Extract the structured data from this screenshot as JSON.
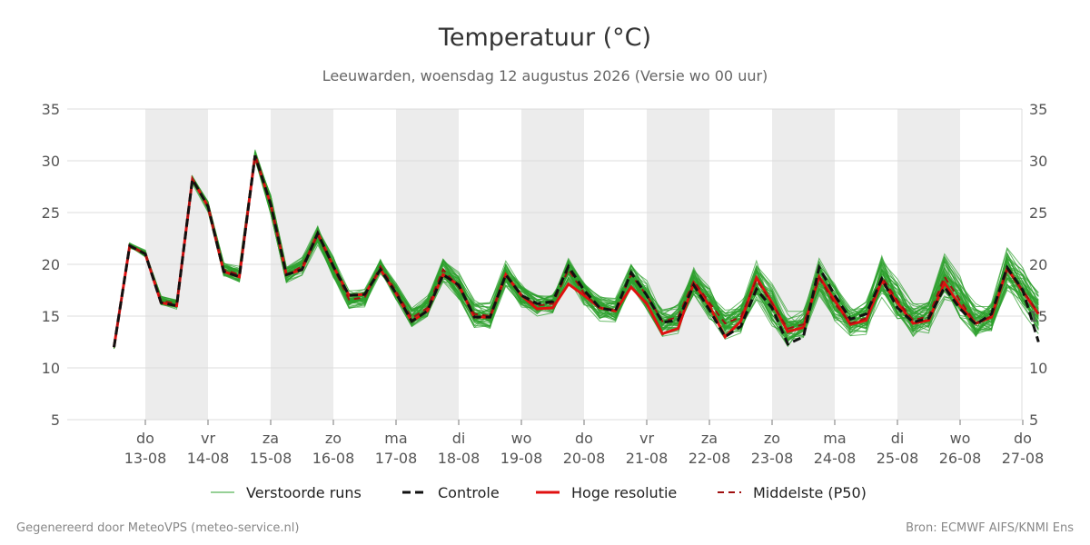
{
  "title": "Temperatuur (°C)",
  "subtitle": "Leeuwarden, woensdag 12 augustus 2026 (Versie wo 00 uur)",
  "footer_left": "Gegenereerd door MeteoVPS (meteo-service.nl)",
  "footer_right": "Bron: ECMWF AIFS/KNMI Ens",
  "colors": {
    "ensemble": "#2ca02c",
    "control": "#111111",
    "hires": "#e01010",
    "median": "#a01010",
    "weekend_band": "#ececec",
    "grid": "#dddddd"
  },
  "chart_data": {
    "type": "line",
    "y_range": [
      5,
      35
    ],
    "y_ticks": [
      5,
      10,
      15,
      20,
      25,
      30,
      35
    ],
    "grid": true,
    "legend_position": "bottom",
    "x_start": "12-08 12:00",
    "x_step_hours": 6,
    "x_ticks": [
      {
        "day": "do",
        "date": "13-08"
      },
      {
        "day": "vr",
        "date": "14-08"
      },
      {
        "day": "za",
        "date": "15-08"
      },
      {
        "day": "zo",
        "date": "16-08"
      },
      {
        "day": "ma",
        "date": "17-08"
      },
      {
        "day": "di",
        "date": "18-08"
      },
      {
        "day": "wo",
        "date": "19-08"
      },
      {
        "day": "do",
        "date": "20-08"
      },
      {
        "day": "vr",
        "date": "21-08"
      },
      {
        "day": "za",
        "date": "22-08"
      },
      {
        "day": "zo",
        "date": "23-08"
      },
      {
        "day": "ma",
        "date": "24-08"
      },
      {
        "day": "di",
        "date": "25-08"
      },
      {
        "day": "wo",
        "date": "26-08"
      },
      {
        "day": "do",
        "date": "27-08"
      }
    ],
    "shaded_days": [
      "13-08",
      "15-08",
      "17-08",
      "19-08",
      "21-08",
      "23-08",
      "25-08"
    ],
    "legend": [
      {
        "label": "Verstoorde runs",
        "key": "ensemble"
      },
      {
        "label": "Controle",
        "key": "control"
      },
      {
        "label": "Hoge resolutie",
        "key": "hires"
      },
      {
        "label": "Middelste (P50)",
        "key": "median"
      }
    ],
    "series": {
      "hires": [
        12.0,
        21.8,
        21.0,
        16.3,
        16.0,
        28.2,
        25.6,
        19.3,
        18.8,
        30.5,
        25.8,
        19.0,
        19.5,
        23.0,
        19.8,
        17.0,
        17.1,
        19.5,
        17.2,
        14.5,
        15.5,
        19.0,
        18.0,
        14.9,
        14.9,
        19.0,
        17.0,
        15.7,
        15.8,
        18.1,
        17.0,
        15.8,
        15.5,
        17.8,
        16.2,
        13.3,
        13.8,
        18.2,
        16.0,
        13.0,
        14.5,
        18.7,
        16.3,
        13.5,
        13.9,
        18.8,
        16.5,
        14.2,
        14.6,
        18.4,
        16.3,
        14.3,
        14.6,
        18.2,
        16.0,
        14.3,
        14.9,
        19.6,
        17.4,
        15.2
      ],
      "control": [
        12.0,
        21.8,
        21.0,
        16.3,
        16.0,
        28.2,
        25.6,
        19.3,
        18.8,
        30.5,
        25.8,
        19.0,
        19.5,
        23.0,
        19.8,
        17.0,
        17.1,
        19.5,
        17.2,
        14.5,
        15.5,
        19.0,
        18.0,
        14.9,
        14.9,
        19.0,
        17.0,
        16.2,
        16.4,
        19.8,
        17.5,
        15.8,
        15.5,
        19.2,
        17.0,
        14.4,
        14.6,
        18.0,
        15.6,
        13.0,
        14.0,
        17.6,
        15.8,
        12.3,
        13.0,
        19.7,
        17.0,
        14.7,
        15.2,
        18.6,
        15.8,
        14.4,
        14.8,
        17.8,
        15.7,
        14.2,
        15.2,
        19.7,
        17.5,
        12.5
      ],
      "median": [
        12.0,
        21.8,
        21.0,
        16.5,
        16.2,
        28.2,
        25.6,
        19.5,
        19.0,
        30.5,
        25.8,
        19.0,
        19.8,
        22.8,
        19.7,
        16.6,
        16.8,
        19.8,
        17.4,
        14.8,
        15.8,
        19.5,
        17.8,
        15.2,
        15.0,
        19.0,
        17.0,
        16.0,
        16.2,
        19.5,
        17.2,
        15.8,
        15.6,
        19.0,
        17.0,
        14.5,
        14.9,
        18.4,
        16.3,
        14.3,
        14.9,
        18.5,
        16.2,
        13.8,
        14.2,
        18.7,
        16.2,
        14.3,
        14.8,
        18.8,
        16.5,
        14.6,
        15.0,
        18.8,
        16.5,
        14.3,
        15.0,
        19.5,
        17.5,
        15.3
      ]
    },
    "ensemble_members": 50,
    "ensemble_spread": [
      0.3,
      0.4,
      0.5,
      0.7,
      0.7,
      0.4,
      0.8,
      1.0,
      1.0,
      0.6,
      1.6,
      0.8,
      1.1,
      1.3,
      1.4,
      1.2,
      1.3,
      1.0,
      1.4,
      1.2,
      1.4,
      1.9,
      2.0,
      1.6,
      1.6,
      1.6,
      1.6,
      1.5,
      1.6,
      1.7,
      1.8,
      1.6,
      1.6,
      1.9,
      2.2,
      1.8,
      1.8,
      2.3,
      2.4,
      2.0,
      2.1,
      2.8,
      2.6,
      2.1,
      2.1,
      2.7,
      2.6,
      2.2,
      2.3,
      3.0,
      2.7,
      2.3,
      2.3,
      3.2,
      2.9,
      2.4,
      2.4,
      3.1,
      2.8,
      2.4
    ]
  }
}
